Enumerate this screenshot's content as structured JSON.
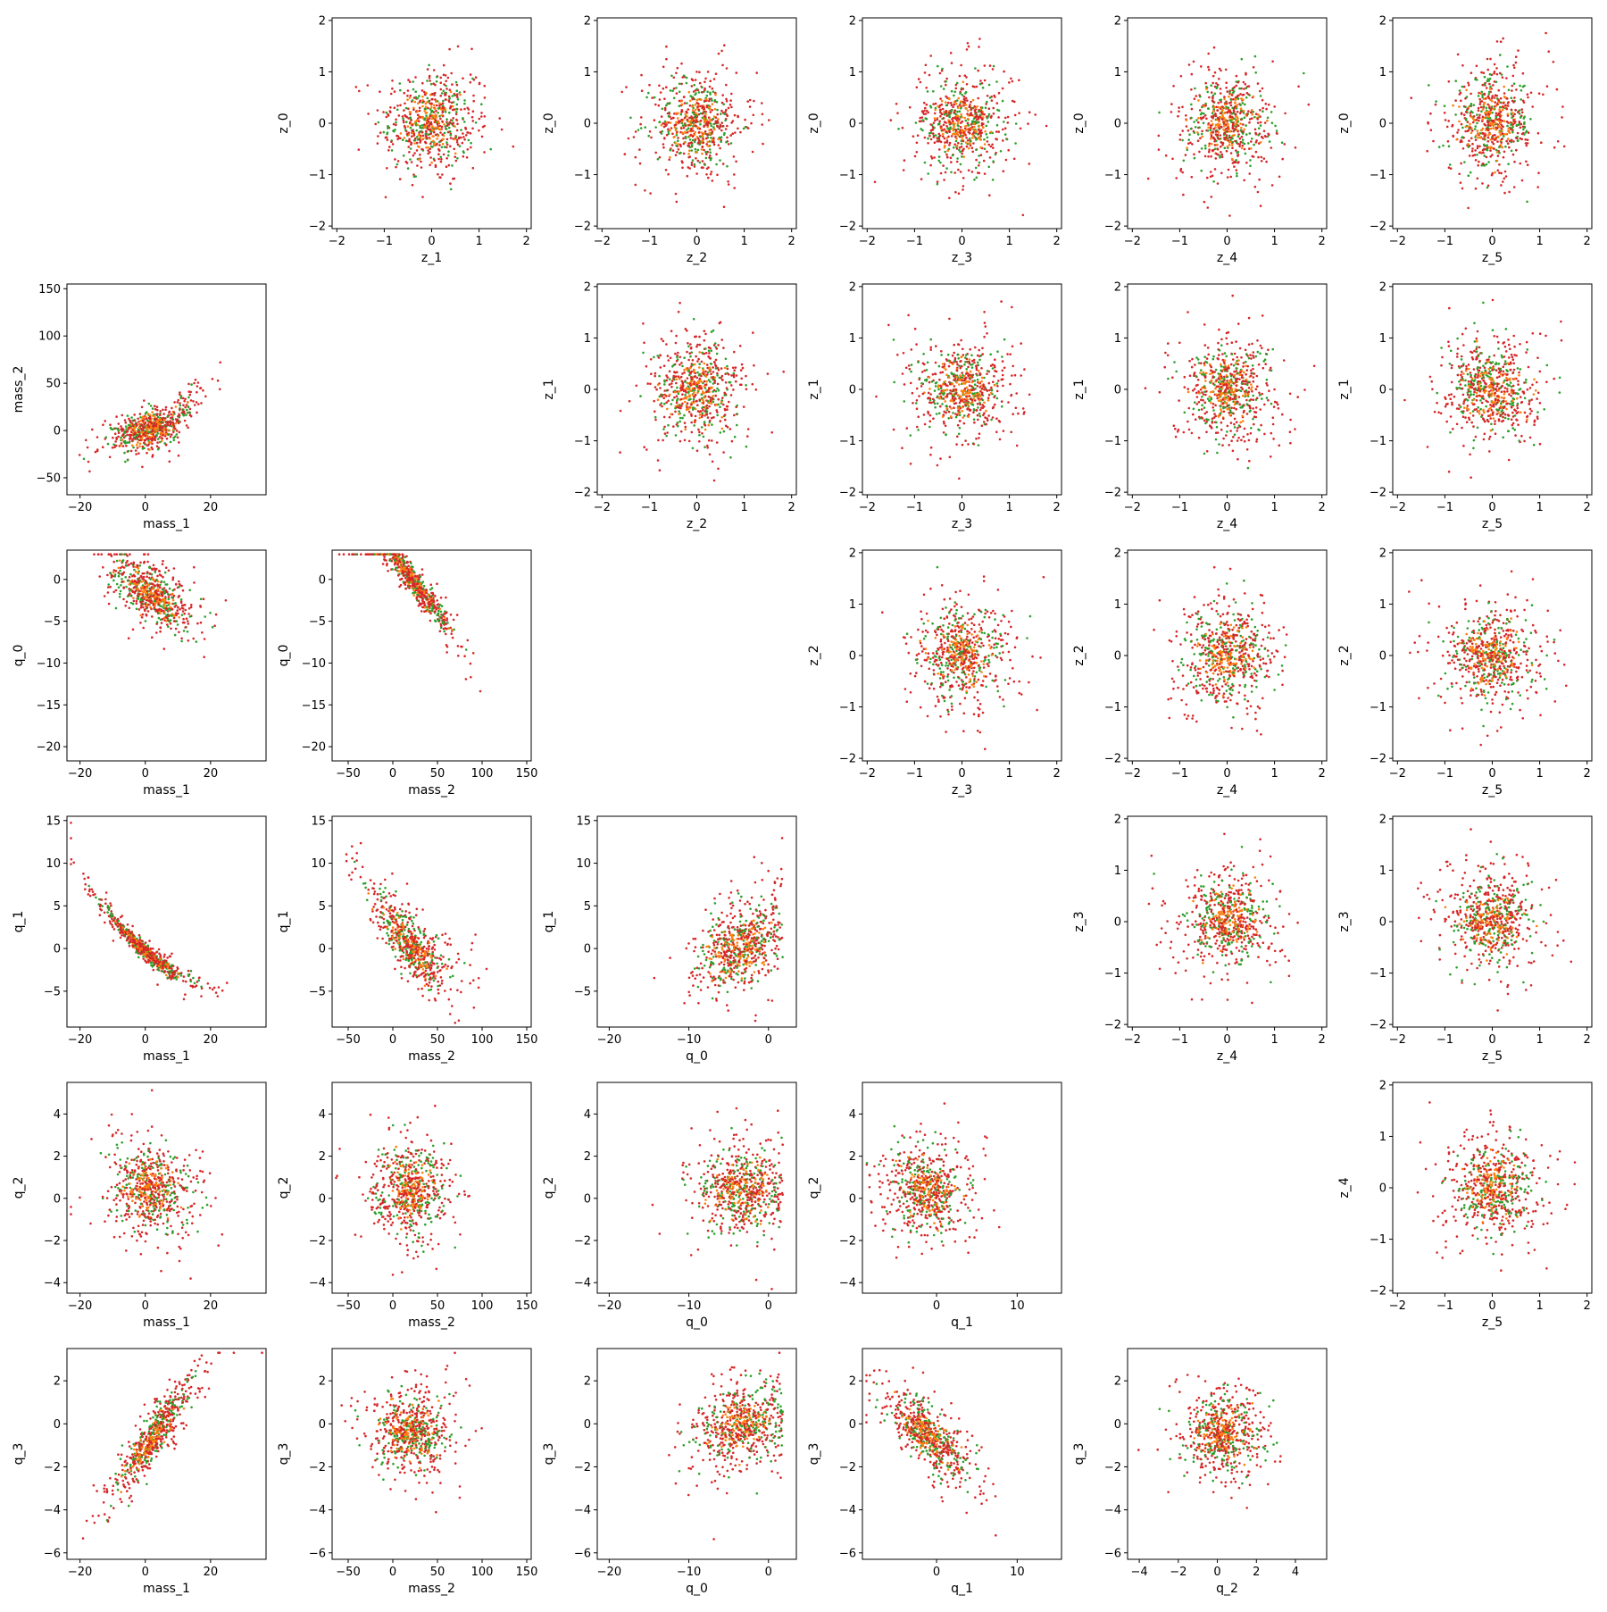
{
  "chart_data": {
    "type": "scatter",
    "title": "",
    "grid": false,
    "legend": null,
    "series_colors": [
      "#d62728",
      "#2ca02c",
      "#ff7f0e"
    ],
    "subplots": [
      {
        "row": 0,
        "col": 1,
        "x": "z_1",
        "y": "z_0",
        "xlim": [
          -2.1,
          2.1
        ],
        "ylim": [
          -2.05,
          2.05
        ],
        "xticks": [
          -2,
          -1,
          0,
          1,
          2
        ],
        "yticks": [
          -2,
          -1,
          0,
          1,
          2
        ],
        "pattern": "iso",
        "params": {
          "sx": 0.62,
          "sy": 0.62
        }
      },
      {
        "row": 0,
        "col": 2,
        "x": "z_2",
        "y": "z_0",
        "xlim": [
          -2.1,
          2.1
        ],
        "ylim": [
          -2.05,
          2.05
        ],
        "xticks": [
          -2,
          -1,
          0,
          1,
          2
        ],
        "yticks": [
          -2,
          -1,
          0,
          1,
          2
        ],
        "pattern": "iso",
        "params": {
          "sx": 0.62,
          "sy": 0.62
        }
      },
      {
        "row": 0,
        "col": 3,
        "x": "z_3",
        "y": "z_0",
        "xlim": [
          -2.1,
          2.1
        ],
        "ylim": [
          -2.05,
          2.05
        ],
        "xticks": [
          -2,
          -1,
          0,
          1,
          2
        ],
        "yticks": [
          -2,
          -1,
          0,
          1,
          2
        ],
        "pattern": "iso",
        "params": {
          "sx": 0.62,
          "sy": 0.62
        }
      },
      {
        "row": 0,
        "col": 4,
        "x": "z_4",
        "y": "z_0",
        "xlim": [
          -2.1,
          2.1
        ],
        "ylim": [
          -2.05,
          2.05
        ],
        "xticks": [
          -2,
          -1,
          0,
          1,
          2
        ],
        "yticks": [
          -2,
          -1,
          0,
          1,
          2
        ],
        "pattern": "iso",
        "params": {
          "sx": 0.62,
          "sy": 0.62
        }
      },
      {
        "row": 0,
        "col": 5,
        "x": "z_5",
        "y": "z_0",
        "xlim": [
          -2.1,
          2.1
        ],
        "ylim": [
          -2.05,
          2.05
        ],
        "xticks": [
          -2,
          -1,
          0,
          1,
          2
        ],
        "yticks": [
          -2,
          -1,
          0,
          1,
          2
        ],
        "pattern": "iso",
        "params": {
          "sx": 0.62,
          "sy": 0.62
        }
      },
      {
        "row": 1,
        "col": 0,
        "x": "mass_1",
        "y": "mass_2",
        "xlim": [
          -24,
          37
        ],
        "ylim": [
          -68,
          155
        ],
        "xticks": [
          -20,
          0,
          20
        ],
        "yticks": [
          -50,
          0,
          50,
          100,
          150
        ],
        "pattern": "mass",
        "params": {}
      },
      {
        "row": 1,
        "col": 2,
        "x": "z_2",
        "y": "z_1",
        "xlim": [
          -2.1,
          2.1
        ],
        "ylim": [
          -2.05,
          2.05
        ],
        "xticks": [
          -2,
          -1,
          0,
          1,
          2
        ],
        "yticks": [
          -2,
          -1,
          0,
          1,
          2
        ],
        "pattern": "iso",
        "params": {
          "sx": 0.62,
          "sy": 0.62
        }
      },
      {
        "row": 1,
        "col": 3,
        "x": "z_3",
        "y": "z_1",
        "xlim": [
          -2.1,
          2.1
        ],
        "ylim": [
          -2.05,
          2.05
        ],
        "xticks": [
          -2,
          -1,
          0,
          1,
          2
        ],
        "yticks": [
          -2,
          -1,
          0,
          1,
          2
        ],
        "pattern": "iso",
        "params": {
          "sx": 0.62,
          "sy": 0.62
        }
      },
      {
        "row": 1,
        "col": 4,
        "x": "z_4",
        "y": "z_1",
        "xlim": [
          -2.1,
          2.1
        ],
        "ylim": [
          -2.05,
          2.05
        ],
        "xticks": [
          -2,
          -1,
          0,
          1,
          2
        ],
        "yticks": [
          -2,
          -1,
          0,
          1,
          2
        ],
        "pattern": "iso",
        "params": {
          "sx": 0.62,
          "sy": 0.62
        }
      },
      {
        "row": 1,
        "col": 5,
        "x": "z_5",
        "y": "z_1",
        "xlim": [
          -2.1,
          2.1
        ],
        "ylim": [
          -2.05,
          2.05
        ],
        "xticks": [
          -2,
          -1,
          0,
          1,
          2
        ],
        "yticks": [
          -2,
          -1,
          0,
          1,
          2
        ],
        "pattern": "iso",
        "params": {
          "sx": 0.62,
          "sy": 0.62
        }
      },
      {
        "row": 2,
        "col": 0,
        "x": "mass_1",
        "y": "q_0",
        "xlim": [
          -24,
          37
        ],
        "ylim": [
          -21.7,
          3.5
        ],
        "xticks": [
          -20,
          0,
          20
        ],
        "yticks": [
          -20,
          -15,
          -10,
          -5,
          0
        ],
        "pattern": "lin",
        "params": {
          "mx": 2,
          "sx": 8,
          "a": -0.22,
          "b": -1.8,
          "n": 2.2
        }
      },
      {
        "row": 2,
        "col": 1,
        "x": "mass_2",
        "y": "q_0",
        "xlim": [
          -68,
          155
        ],
        "ylim": [
          -21.7,
          3.5
        ],
        "xticks": [
          -50,
          0,
          50,
          100,
          150
        ],
        "yticks": [
          -20,
          -15,
          -10,
          -5,
          0
        ],
        "pattern": "lin",
        "params": {
          "mx": 25,
          "sx": 30,
          "a": -0.135,
          "b": -0.5,
          "n": 1.2
        }
      },
      {
        "row": 2,
        "col": 3,
        "x": "z_3",
        "y": "z_2",
        "xlim": [
          -2.1,
          2.1
        ],
        "ylim": [
          -2.05,
          2.05
        ],
        "xticks": [
          -2,
          -1,
          0,
          1,
          2
        ],
        "yticks": [
          -2,
          -1,
          0,
          1,
          2
        ],
        "pattern": "iso",
        "params": {
          "sx": 0.62,
          "sy": 0.62
        }
      },
      {
        "row": 2,
        "col": 4,
        "x": "z_4",
        "y": "z_2",
        "xlim": [
          -2.1,
          2.1
        ],
        "ylim": [
          -2.05,
          2.05
        ],
        "xticks": [
          -2,
          -1,
          0,
          1,
          2
        ],
        "yticks": [
          -2,
          -1,
          0,
          1,
          2
        ],
        "pattern": "iso",
        "params": {
          "sx": 0.62,
          "sy": 0.62
        }
      },
      {
        "row": 2,
        "col": 5,
        "x": "z_5",
        "y": "z_2",
        "xlim": [
          -2.1,
          2.1
        ],
        "ylim": [
          -2.05,
          2.05
        ],
        "xticks": [
          -2,
          -1,
          0,
          1,
          2
        ],
        "yticks": [
          -2,
          -1,
          0,
          1,
          2
        ],
        "pattern": "iso",
        "params": {
          "sx": 0.62,
          "sy": 0.62
        }
      },
      {
        "row": 3,
        "col": 0,
        "x": "mass_1",
        "y": "q_1",
        "xlim": [
          -24,
          37
        ],
        "ylim": [
          -9.2,
          15.5
        ],
        "xticks": [
          -20,
          0,
          20
        ],
        "yticks": [
          -5,
          0,
          5,
          10,
          15
        ],
        "pattern": "curve",
        "params": {
          "mx": 0,
          "sx": 9,
          "a": 0.006,
          "b": -0.33,
          "c": -0.3,
          "n": 0.7
        }
      },
      {
        "row": 3,
        "col": 1,
        "x": "mass_2",
        "y": "q_1",
        "xlim": [
          -68,
          155
        ],
        "ylim": [
          -9.2,
          15.5
        ],
        "xticks": [
          -50,
          0,
          50,
          100,
          150
        ],
        "yticks": [
          -5,
          0,
          5,
          10,
          15
        ],
        "pattern": "curve",
        "params": {
          "mx": 20,
          "sx": 30,
          "a": 0.0006,
          "b": -0.1,
          "c": 0.3,
          "n": 2.3
        }
      },
      {
        "row": 3,
        "col": 2,
        "x": "q_0",
        "y": "q_1",
        "xlim": [
          -21.5,
          3.5
        ],
        "ylim": [
          -9.2,
          15.5
        ],
        "xticks": [
          -20,
          -10,
          0
        ],
        "yticks": [
          -5,
          0,
          5,
          10,
          15
        ],
        "pattern": "curve",
        "params": {
          "mx": -3.5,
          "sx": 3.8,
          "a": 0.0,
          "b": 0.35,
          "c": 0.2,
          "n": 3.2,
          "xmax": 1.8
        }
      },
      {
        "row": 3,
        "col": 4,
        "x": "z_4",
        "y": "z_3",
        "xlim": [
          -2.1,
          2.1
        ],
        "ylim": [
          -2.05,
          2.05
        ],
        "xticks": [
          -2,
          -1,
          0,
          1,
          2
        ],
        "yticks": [
          -2,
          -1,
          0,
          1,
          2
        ],
        "pattern": "iso",
        "params": {
          "sx": 0.62,
          "sy": 0.62
        }
      },
      {
        "row": 3,
        "col": 5,
        "x": "z_5",
        "y": "z_3",
        "xlim": [
          -2.1,
          2.1
        ],
        "ylim": [
          -2.05,
          2.05
        ],
        "xticks": [
          -2,
          -1,
          0,
          1,
          2
        ],
        "yticks": [
          -2,
          -1,
          0,
          1,
          2
        ],
        "pattern": "iso",
        "params": {
          "sx": 0.62,
          "sy": 0.62
        }
      },
      {
        "row": 4,
        "col": 0,
        "x": "mass_1",
        "y": "q_2",
        "xlim": [
          -24,
          37
        ],
        "ylim": [
          -4.5,
          5.5
        ],
        "xticks": [
          -20,
          0,
          20
        ],
        "yticks": [
          -4,
          -2,
          0,
          2,
          4
        ],
        "pattern": "lin",
        "params": {
          "mx": 2,
          "sx": 9,
          "a": 0.0,
          "b": 0.4,
          "n": 1.4
        }
      },
      {
        "row": 4,
        "col": 1,
        "x": "mass_2",
        "y": "q_2",
        "xlim": [
          -68,
          155
        ],
        "ylim": [
          -4.5,
          5.5
        ],
        "xticks": [
          -50,
          0,
          50,
          100,
          150
        ],
        "yticks": [
          -4,
          -2,
          0,
          2,
          4
        ],
        "pattern": "lin",
        "params": {
          "mx": 20,
          "sx": 28,
          "a": 0.0,
          "b": 0.4,
          "n": 1.4
        }
      },
      {
        "row": 4,
        "col": 2,
        "x": "q_0",
        "y": "q_2",
        "xlim": [
          -21.5,
          3.5
        ],
        "ylim": [
          -4.5,
          5.5
        ],
        "xticks": [
          -20,
          -10,
          0
        ],
        "yticks": [
          -4,
          -2,
          0,
          2,
          4
        ],
        "pattern": "lin",
        "params": {
          "mx": -3.5,
          "sx": 3.8,
          "a": 0.0,
          "b": 0.4,
          "n": 1.4,
          "xmax": 1.8
        }
      },
      {
        "row": 4,
        "col": 3,
        "x": "q_1",
        "y": "q_2",
        "xlim": [
          -9.2,
          15.5
        ],
        "ylim": [
          -4.5,
          5.5
        ],
        "xticks": [
          0,
          10
        ],
        "yticks": [
          -4,
          -2,
          0,
          2,
          4
        ],
        "pattern": "lin",
        "params": {
          "mx": -1,
          "sx": 3.5,
          "a": -0.05,
          "b": 0.4,
          "n": 1.4
        }
      },
      {
        "row": 4,
        "col": 5,
        "x": "z_5",
        "y": "z_4",
        "xlim": [
          -2.1,
          2.1
        ],
        "ylim": [
          -2.05,
          2.05
        ],
        "xticks": [
          -2,
          -1,
          0,
          1,
          2
        ],
        "yticks": [
          -2,
          -1,
          0,
          1,
          2
        ],
        "pattern": "iso",
        "params": {
          "sx": 0.62,
          "sy": 0.62
        }
      },
      {
        "row": 5,
        "col": 0,
        "x": "mass_1",
        "y": "q_3",
        "xlim": [
          -24,
          37
        ],
        "ylim": [
          -6.3,
          3.5
        ],
        "xticks": [
          -20,
          0,
          20
        ],
        "yticks": [
          -6,
          -4,
          -2,
          0,
          2
        ],
        "pattern": "lin",
        "params": {
          "mx": 2,
          "sx": 8,
          "a": 0.2,
          "b": -0.7,
          "n": 0.8
        }
      },
      {
        "row": 5,
        "col": 1,
        "x": "mass_2",
        "y": "q_3",
        "xlim": [
          -68,
          155
        ],
        "ylim": [
          -6.3,
          3.5
        ],
        "xticks": [
          -50,
          0,
          50,
          100,
          150
        ],
        "yticks": [
          -6,
          -4,
          -2,
          0,
          2
        ],
        "pattern": "lin",
        "params": {
          "mx": 20,
          "sx": 28,
          "a": 0.0,
          "b": -0.4,
          "n": 1.3
        }
      },
      {
        "row": 5,
        "col": 2,
        "x": "q_0",
        "y": "q_3",
        "xlim": [
          -21.5,
          3.5
        ],
        "ylim": [
          -6.3,
          3.5
        ],
        "xticks": [
          -20,
          -10,
          0
        ],
        "yticks": [
          -6,
          -4,
          -2,
          0,
          2
        ],
        "pattern": "lin",
        "params": {
          "mx": -3.5,
          "sx": 3.8,
          "a": 0.08,
          "b": -0.1,
          "n": 1.3,
          "xmax": 1.8
        }
      },
      {
        "row": 5,
        "col": 3,
        "x": "q_1",
        "y": "q_3",
        "xlim": [
          -9.2,
          15.5
        ],
        "ylim": [
          -6.3,
          3.5
        ],
        "xticks": [
          0,
          10
        ],
        "yticks": [
          -6,
          -4,
          -2,
          0,
          2
        ],
        "pattern": "lin",
        "params": {
          "mx": -1,
          "sx": 3.5,
          "a": -0.28,
          "b": -0.6,
          "n": 0.9
        }
      },
      {
        "row": 5,
        "col": 4,
        "x": "q_2",
        "y": "q_3",
        "xlim": [
          -4.6,
          5.6
        ],
        "ylim": [
          -6.3,
          3.5
        ],
        "xticks": [
          -4,
          -2,
          0,
          2,
          4
        ],
        "yticks": [
          -6,
          -4,
          -2,
          0,
          2
        ],
        "pattern": "lin",
        "params": {
          "mx": 0.3,
          "sx": 1.4,
          "a": 0.0,
          "b": -0.4,
          "n": 1.3
        }
      }
    ]
  }
}
